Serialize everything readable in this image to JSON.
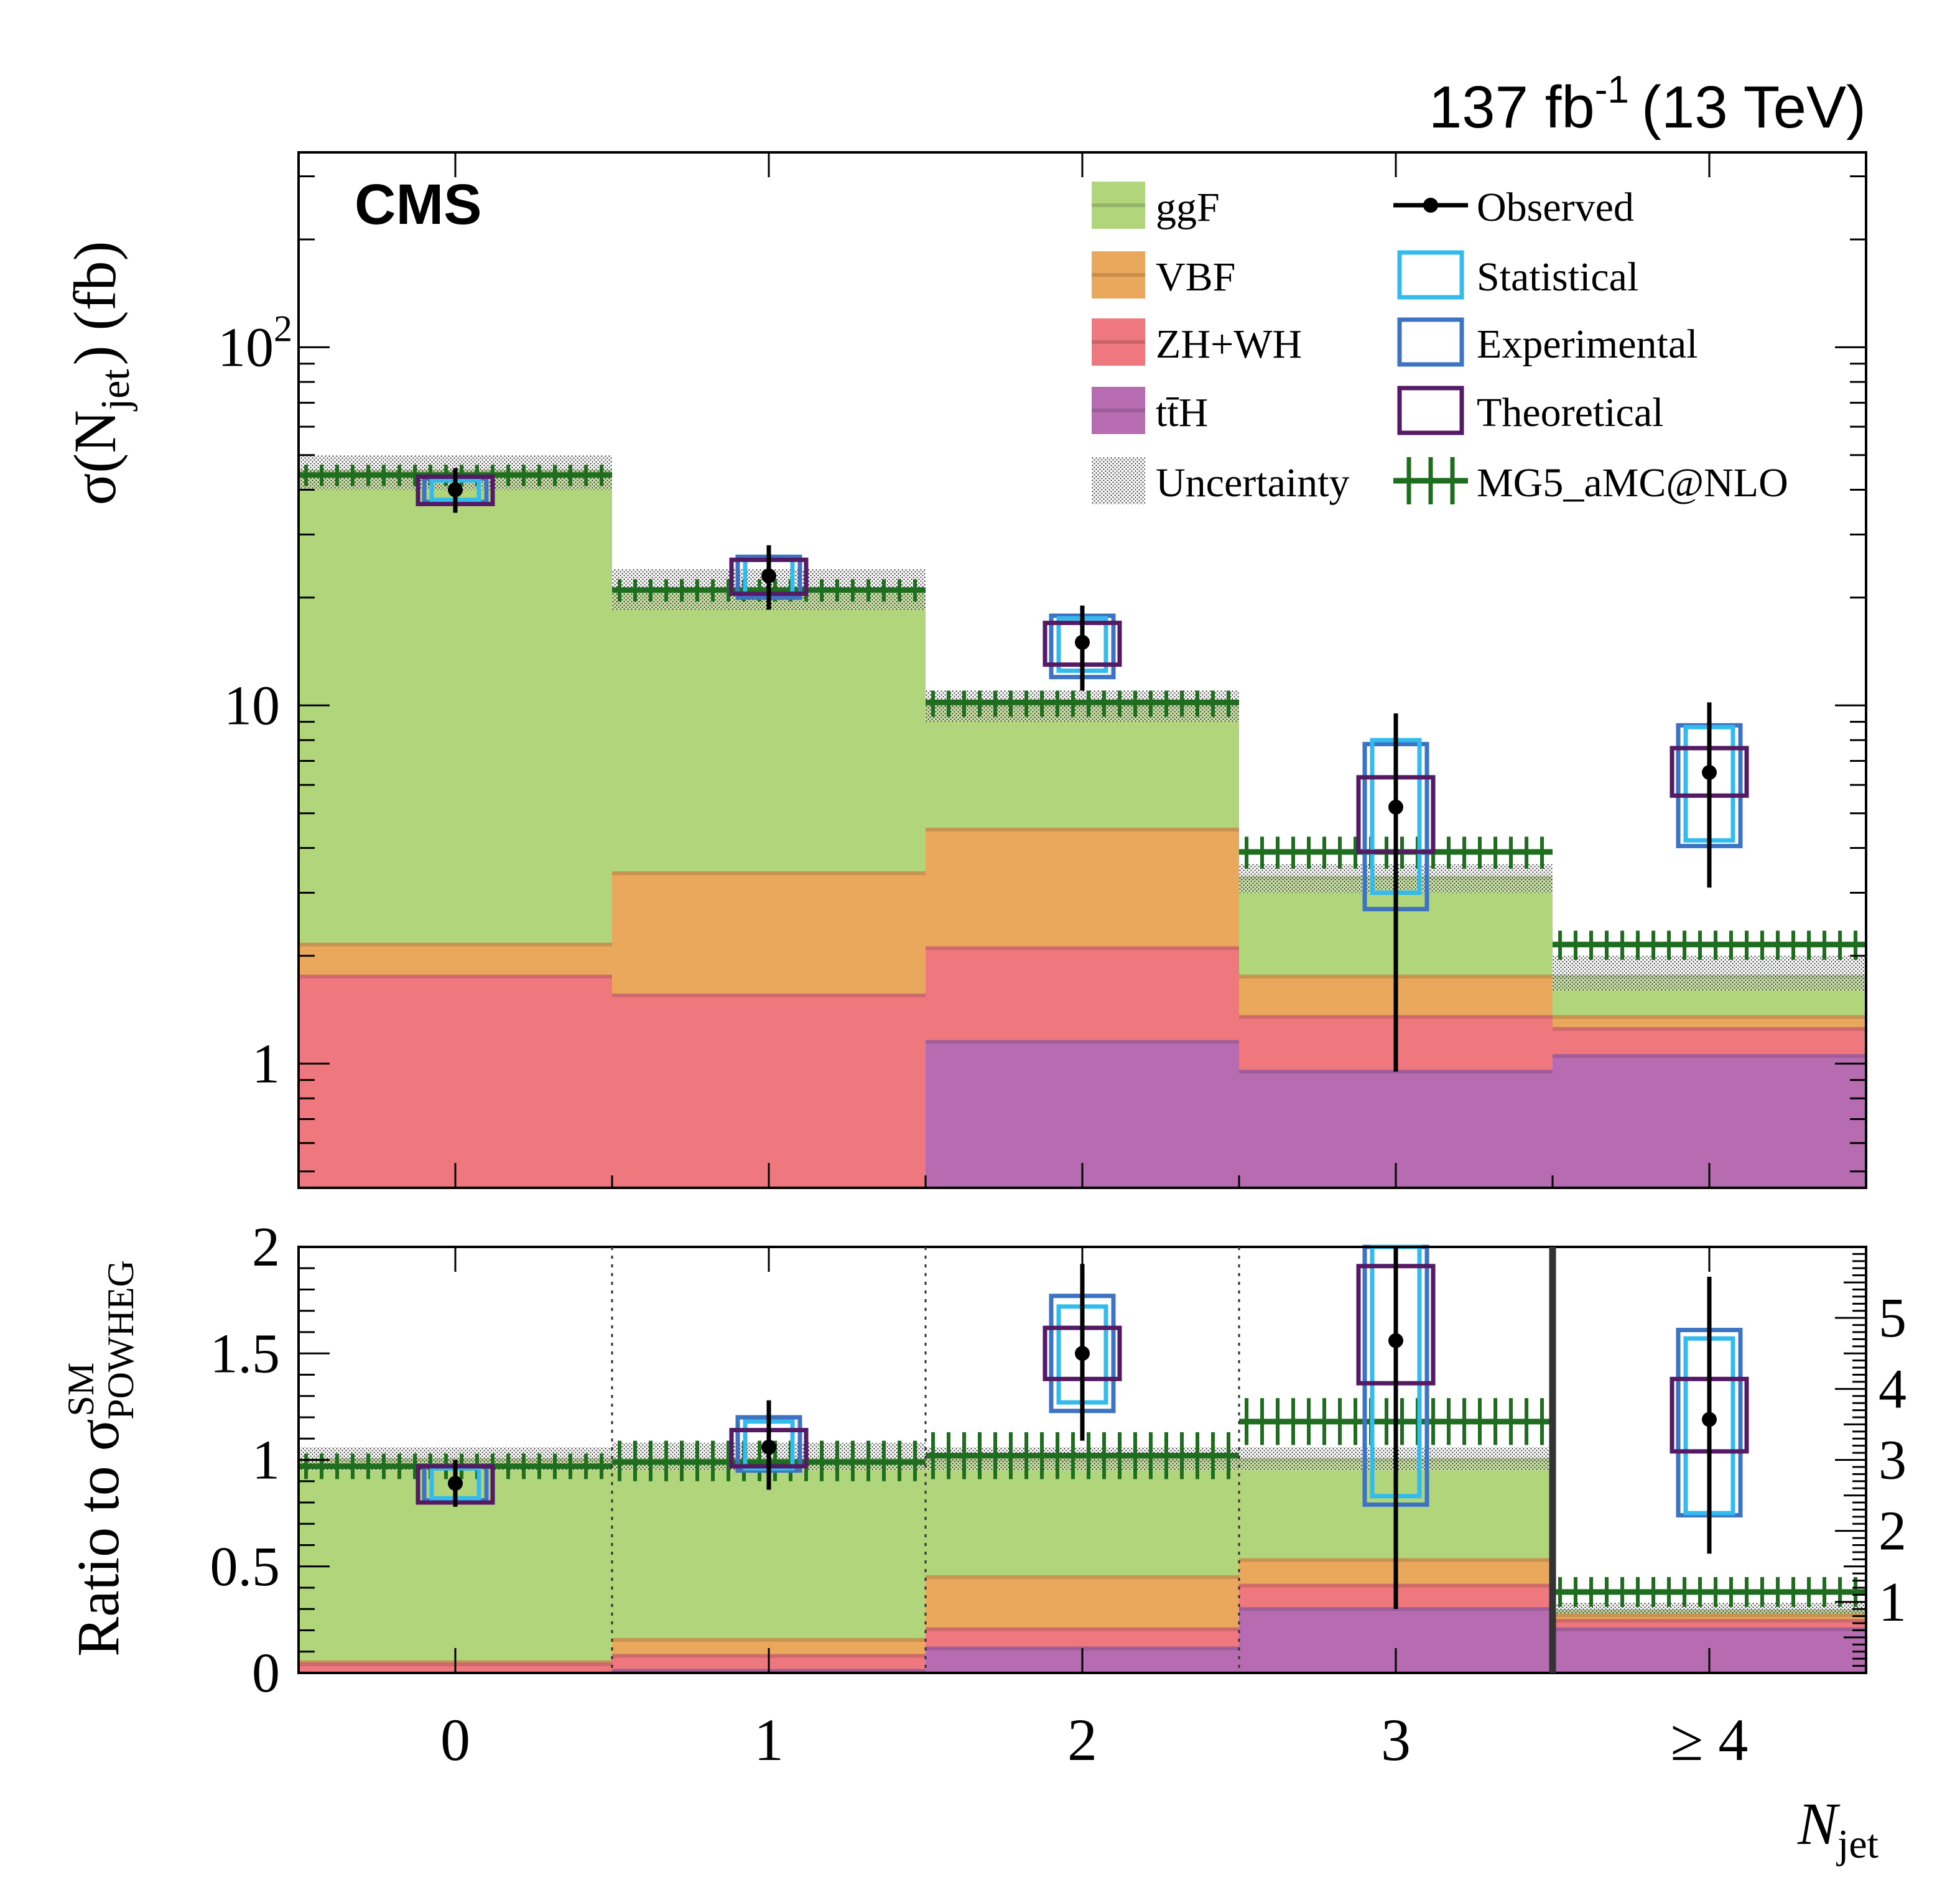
{
  "header": {
    "lumi_value": "137 fb",
    "lumi_exp": "-1",
    "energy": "(13 TeV)",
    "experiment": "CMS"
  },
  "colors": {
    "ggF": "#b1d57a",
    "VBF": "#e9a85b",
    "ZHWH": "#ee787e",
    "ttH": "#b76cb2",
    "statistical": "#33bbee",
    "experimental": "#3d73c2",
    "theoretical": "#551a64",
    "mg5": "#1f6e1f",
    "observed": "#000000"
  },
  "legend": {
    "left": [
      {
        "key": "ggF",
        "label": "ggF",
        "swatch": "fill"
      },
      {
        "key": "VBF",
        "label": "VBF",
        "swatch": "fill"
      },
      {
        "key": "ZHWH",
        "label": "ZH+WH",
        "swatch": "fill"
      },
      {
        "key": "ttH",
        "label": "tt̄H",
        "swatch": "fill"
      },
      {
        "key": "unc",
        "label": "Uncertainty",
        "swatch": "hatch"
      }
    ],
    "right": [
      {
        "key": "observed",
        "label": "Observed",
        "swatch": "marker"
      },
      {
        "key": "statistical",
        "label": "Statistical",
        "swatch": "box"
      },
      {
        "key": "experimental",
        "label": "Experimental",
        "swatch": "box"
      },
      {
        "key": "theoretical",
        "label": "Theoretical",
        "swatch": "box"
      },
      {
        "key": "mg5",
        "label": "MG5_aMC@NLO",
        "swatch": "mg5"
      }
    ]
  },
  "chart_data": [
    {
      "type": "bar",
      "stacked": true,
      "log_y": true,
      "title": "",
      "categories": [
        "0",
        "1",
        "2",
        "3",
        "≥ 4"
      ],
      "ylabel_main": "σ(N",
      "ylabel_sub": "jet",
      "ylabel_tail": ") (fb)",
      "ylim": [
        0.45,
        350
      ],
      "yticks": [
        {
          "v": 1,
          "label": "1"
        },
        {
          "v": 10,
          "label": "10"
        },
        {
          "v": 100,
          "label": "10",
          "exp": "2"
        }
      ],
      "stack_totals": [
        {
          "name": "ttH",
          "values": [
            0,
            0,
            1.15,
            0.95,
            1.05
          ]
        },
        {
          "name": "ZHWH",
          "values": [
            1.75,
            1.55,
            2.1,
            1.35,
            1.25
          ]
        },
        {
          "name": "VBF",
          "values": [
            2.15,
            3.4,
            4.5,
            1.75,
            1.35
          ]
        },
        {
          "name": "ggF",
          "values": [
            45,
            21,
            10,
            3.3,
            1.75
          ]
        }
      ],
      "uncertainty": {
        "low": [
          40,
          18.5,
          9.0,
          3.0,
          1.6
        ],
        "high": [
          50,
          24,
          11,
          3.6,
          2.0
        ]
      },
      "mg5": {
        "values": [
          44,
          21,
          10.2,
          3.9,
          2.15
        ],
        "low": [
          41,
          19.5,
          9.3,
          3.5,
          1.95
        ],
        "high": [
          47,
          22.5,
          11,
          4.3,
          2.35
        ]
      },
      "observed": {
        "values": [
          40,
          23,
          15,
          5.2,
          6.5
        ],
        "total_err": [
          [
            34.5,
            46
          ],
          [
            18.5,
            28
          ],
          [
            11,
            19
          ],
          [
            0.95,
            9.5
          ],
          [
            3.1,
            10.2
          ]
        ],
        "statistical": [
          [
            37.5,
            42.5
          ],
          [
            20.5,
            25.5
          ],
          [
            12.5,
            17.5
          ],
          [
            3.0,
            8.0
          ],
          [
            4.2,
            8.7
          ]
        ],
        "experimental": [
          [
            37,
            43
          ],
          [
            20,
            26
          ],
          [
            12,
            17.8
          ],
          [
            2.7,
            7.8
          ],
          [
            4.05,
            8.8
          ]
        ],
        "theoretical": [
          [
            36.5,
            43.5
          ],
          [
            20.5,
            25.5
          ],
          [
            13,
            17
          ],
          [
            3.9,
            6.3
          ],
          [
            5.6,
            7.6
          ]
        ]
      }
    },
    {
      "type": "bar",
      "stacked": true,
      "title": "",
      "categories": [
        "0",
        "1",
        "2",
        "3",
        "≥ 4"
      ],
      "xlabel_main": "N",
      "xlabel_sub": "jet",
      "ylabel_prefix": "Ratio to σ",
      "ylabel_sup": "SM",
      "ylabel_sub": "POWHEG",
      "ylim": [
        0,
        2
      ],
      "yticks": [
        "0",
        "0.5",
        "1",
        "1.5",
        "2"
      ],
      "right_axis": {
        "ylim": [
          0,
          6
        ],
        "ticks": [
          "1",
          "2",
          "3",
          "4",
          "5"
        ]
      },
      "stack_totals": [
        {
          "name": "ttH",
          "values": [
            0,
            0.01,
            0.115,
            0.3,
            0.205
          ]
        },
        {
          "name": "ZHWH",
          "values": [
            0.04,
            0.08,
            0.205,
            0.41,
            0.245
          ]
        },
        {
          "name": "VBF",
          "values": [
            0.05,
            0.155,
            0.45,
            0.53,
            0.27
          ]
        },
        {
          "name": "ggF",
          "values": [
            1.0,
            1.0,
            1.0,
            1.0,
            0.29
          ]
        }
      ],
      "uncertainty": {
        "low": [
          0.95,
          0.95,
          0.95,
          0.95,
          0.28
        ],
        "high": [
          1.06,
          1.08,
          1.06,
          1.06,
          0.33
        ]
      },
      "mg5": {
        "values": [
          0.97,
          0.99,
          1.02,
          1.18,
          0.38
        ],
        "low": [
          0.91,
          0.9,
          0.91,
          1.07,
          0.31
        ],
        "high": [
          1.03,
          1.09,
          1.13,
          1.29,
          0.45
        ]
      },
      "observed": {
        "values": [
          0.89,
          1.06,
          1.5,
          1.56,
          1.19
        ],
        "total_err": [
          [
            0.78,
            1.0
          ],
          [
            0.86,
            1.28
          ],
          [
            1.09,
            1.92
          ],
          [
            0.3,
            2.0
          ],
          [
            0.56,
            1.86
          ]
        ],
        "statistical": [
          [
            0.82,
            0.96
          ],
          [
            0.96,
            1.18
          ],
          [
            1.27,
            1.72
          ],
          [
            0.83,
            2.0
          ],
          [
            0.75,
            1.57
          ]
        ],
        "experimental": [
          [
            0.81,
            0.97
          ],
          [
            0.95,
            1.2
          ],
          [
            1.23,
            1.77
          ],
          [
            0.79,
            2.0
          ],
          [
            0.74,
            1.61
          ]
        ],
        "theoretical": [
          [
            0.8,
            0.97
          ],
          [
            0.97,
            1.14
          ],
          [
            1.38,
            1.62
          ],
          [
            1.36,
            1.91
          ],
          [
            1.04,
            1.38
          ]
        ]
      }
    }
  ]
}
